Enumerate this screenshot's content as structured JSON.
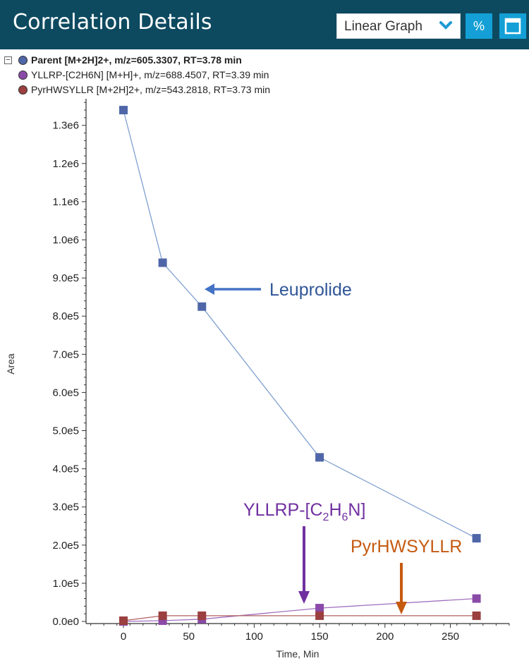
{
  "header": {
    "title": "Correlation Details",
    "graph_type": "Linear Graph",
    "percent_label": "%"
  },
  "legend": {
    "items": [
      {
        "label": "Parent [M+2H]2+, m/z=605.3307, RT=3.78 min",
        "color": "#4f67a8",
        "bold": true
      },
      {
        "label": "YLLRP-[C2H6N] [M+H]+, m/z=688.4507, RT=3.39 min",
        "color": "#8a4aa8",
        "bold": false
      },
      {
        "label": "PyrHWSYLLR [M+2H]2+, m/z=543.2818, RT=3.73 min",
        "color": "#9b3f3f",
        "bold": false
      }
    ]
  },
  "chart_data": {
    "type": "line",
    "xlabel": "Time, Min",
    "ylabel": "Area",
    "xlim": [
      -30,
      300
    ],
    "ylim": [
      0,
      1380000
    ],
    "x_ticks": [
      0,
      50,
      100,
      150,
      200,
      250
    ],
    "y_ticks": [
      0,
      100000,
      200000,
      300000,
      400000,
      500000,
      600000,
      700000,
      800000,
      900000,
      1000000,
      1100000,
      1200000,
      1300000
    ],
    "y_tick_labels": [
      "0.0e0",
      "1.0e5",
      "2.0e5",
      "3.0e5",
      "4.0e5",
      "5.0e5",
      "6.0e5",
      "7.0e5",
      "8.0e5",
      "9.0e5",
      "1.0e6",
      "1.1e6",
      "1.2e6",
      "1.3e6"
    ],
    "series": [
      {
        "name": "Parent [M+2H]2+, m/z=605.3307, RT=3.78 min",
        "color": "#4f67a8",
        "line_color": "#7fa0d0",
        "x": [
          0,
          30,
          60,
          150,
          270
        ],
        "y": [
          1340000,
          940000,
          825000,
          430000,
          218000
        ]
      },
      {
        "name": "YLLRP-[C2H6N] [M+H]+, m/z=688.4507, RT=3.39 min",
        "color": "#8a4aa8",
        "line_color": "#a070c0",
        "x": [
          0,
          30,
          60,
          150,
          270
        ],
        "y": [
          0,
          2000,
          6000,
          35000,
          60000
        ]
      },
      {
        "name": "PyrHWSYLLR [M+2H]2+, m/z=543.2818, RT=3.73 min",
        "color": "#9b3f3f",
        "line_color": "#b06060",
        "x": [
          0,
          30,
          60,
          150,
          270
        ],
        "y": [
          2000,
          15000,
          15000,
          15000,
          15000
        ]
      }
    ],
    "annotations": [
      {
        "text": "Leuprolide",
        "color": "#2f5597"
      },
      {
        "text": "YLLRP-[C",
        "sub1": "2",
        "mid": "H",
        "sub2": "6",
        "end": "N]",
        "color": "#7030a0"
      },
      {
        "text": "PyrHWSYLLR",
        "color": "#c55a11"
      }
    ]
  }
}
